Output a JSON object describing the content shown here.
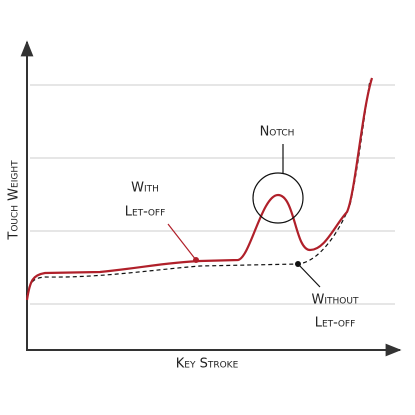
{
  "axes": {
    "y_label": "Touch Weight",
    "x_label": "Key Stroke"
  },
  "annotations": {
    "notch": "Notch",
    "with_line1": "With",
    "with_line2": "Let-off",
    "without_line1": "Without",
    "without_line2": "Let-off"
  }
}
